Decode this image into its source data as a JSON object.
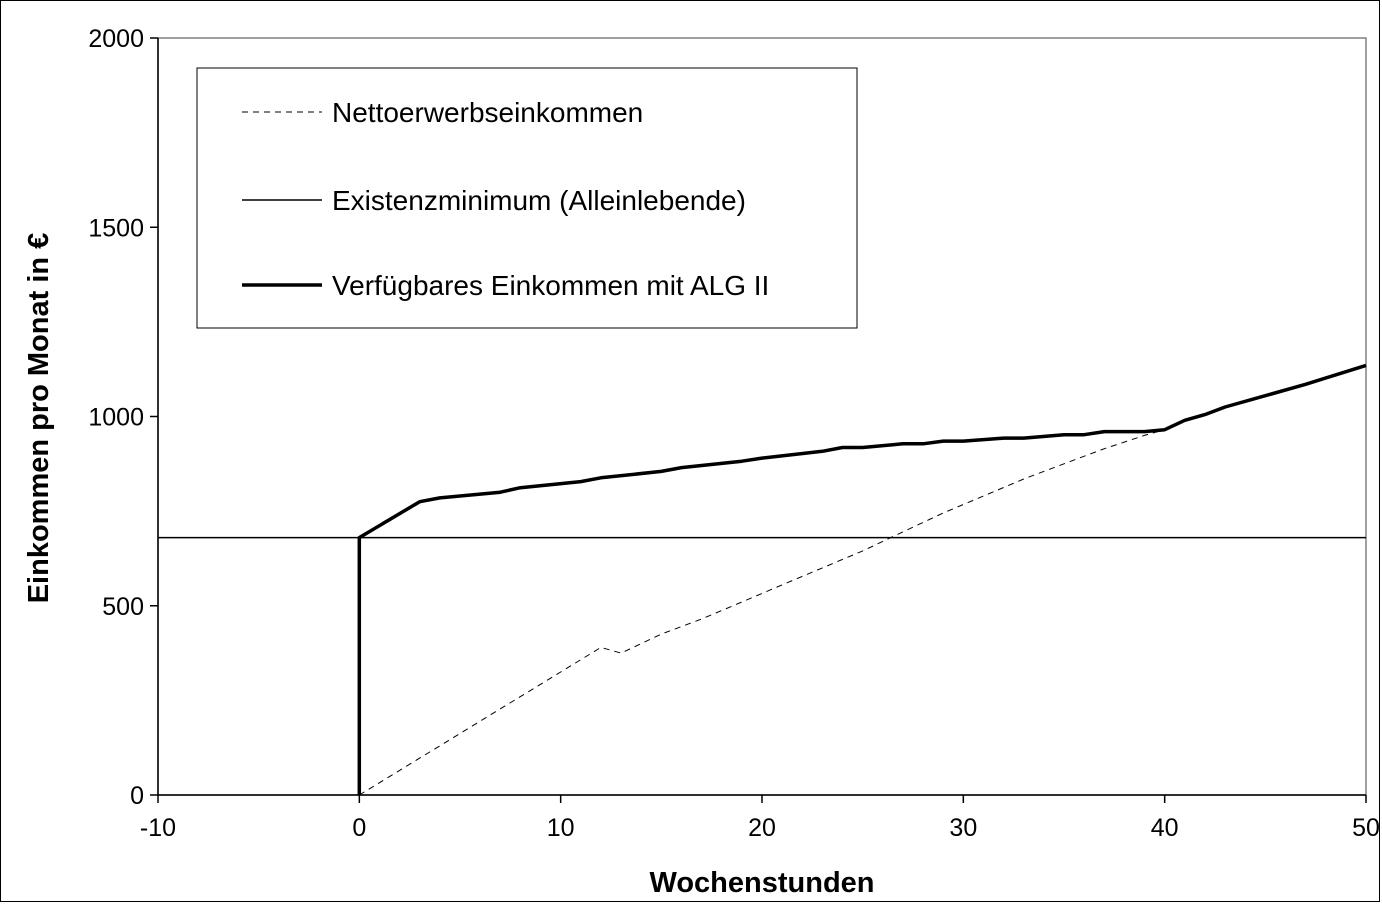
{
  "chart_data": {
    "type": "line",
    "xlabel": "Wochenstunden",
    "ylabel": "Einkommen pro Monat in €",
    "xlim": [
      -10,
      50
    ],
    "ylim": [
      0,
      2000
    ],
    "x_ticks": [
      "-10",
      "0",
      "10",
      "20",
      "30",
      "40",
      "50"
    ],
    "y_ticks": [
      "0",
      "500",
      "1000",
      "1500",
      "2000"
    ],
    "grid": false,
    "legend_position": "top-left",
    "series": [
      {
        "name": "Nettoerwerbseinkommen",
        "style": "dashed",
        "color": "#000000",
        "points": [
          [
            0,
            0
          ],
          [
            2,
            65
          ],
          [
            4,
            130
          ],
          [
            6,
            195
          ],
          [
            8,
            260
          ],
          [
            10,
            325
          ],
          [
            12,
            390
          ],
          [
            13,
            375
          ],
          [
            15,
            425
          ],
          [
            17,
            465
          ],
          [
            19,
            510
          ],
          [
            21,
            555
          ],
          [
            23,
            600
          ],
          [
            25,
            645
          ],
          [
            27,
            695
          ],
          [
            29,
            745
          ],
          [
            31,
            790
          ],
          [
            33,
            835
          ],
          [
            35,
            875
          ],
          [
            37,
            915
          ],
          [
            39,
            950
          ],
          [
            40,
            965
          ],
          [
            41,
            990
          ],
          [
            42,
            1005
          ],
          [
            43,
            1025
          ],
          [
            45,
            1055
          ],
          [
            47,
            1085
          ],
          [
            50,
            1135
          ]
        ]
      },
      {
        "name": "Existenzminimum (Alleinlebende)",
        "style": "thin",
        "color": "#000000",
        "points": [
          [
            -10,
            680
          ],
          [
            50,
            680
          ]
        ]
      },
      {
        "name": "Verfügbares Einkommen mit ALG II",
        "style": "thick",
        "color": "#000000",
        "points": [
          [
            0,
            0
          ],
          [
            0,
            680
          ],
          [
            3,
            775
          ],
          [
            4,
            785
          ],
          [
            7,
            800
          ],
          [
            8,
            812
          ],
          [
            11,
            828
          ],
          [
            12,
            838
          ],
          [
            15,
            855
          ],
          [
            16,
            865
          ],
          [
            19,
            882
          ],
          [
            20,
            890
          ],
          [
            23,
            908
          ],
          [
            24,
            918
          ],
          [
            25,
            918
          ],
          [
            27,
            928
          ],
          [
            28,
            928
          ],
          [
            29,
            935
          ],
          [
            30,
            935
          ],
          [
            32,
            943
          ],
          [
            33,
            943
          ],
          [
            35,
            952
          ],
          [
            36,
            952
          ],
          [
            37,
            960
          ],
          [
            39,
            960
          ],
          [
            40,
            965
          ],
          [
            41,
            990
          ],
          [
            42,
            1005
          ],
          [
            43,
            1025
          ],
          [
            45,
            1055
          ],
          [
            47,
            1085
          ],
          [
            50,
            1135
          ]
        ]
      }
    ]
  }
}
